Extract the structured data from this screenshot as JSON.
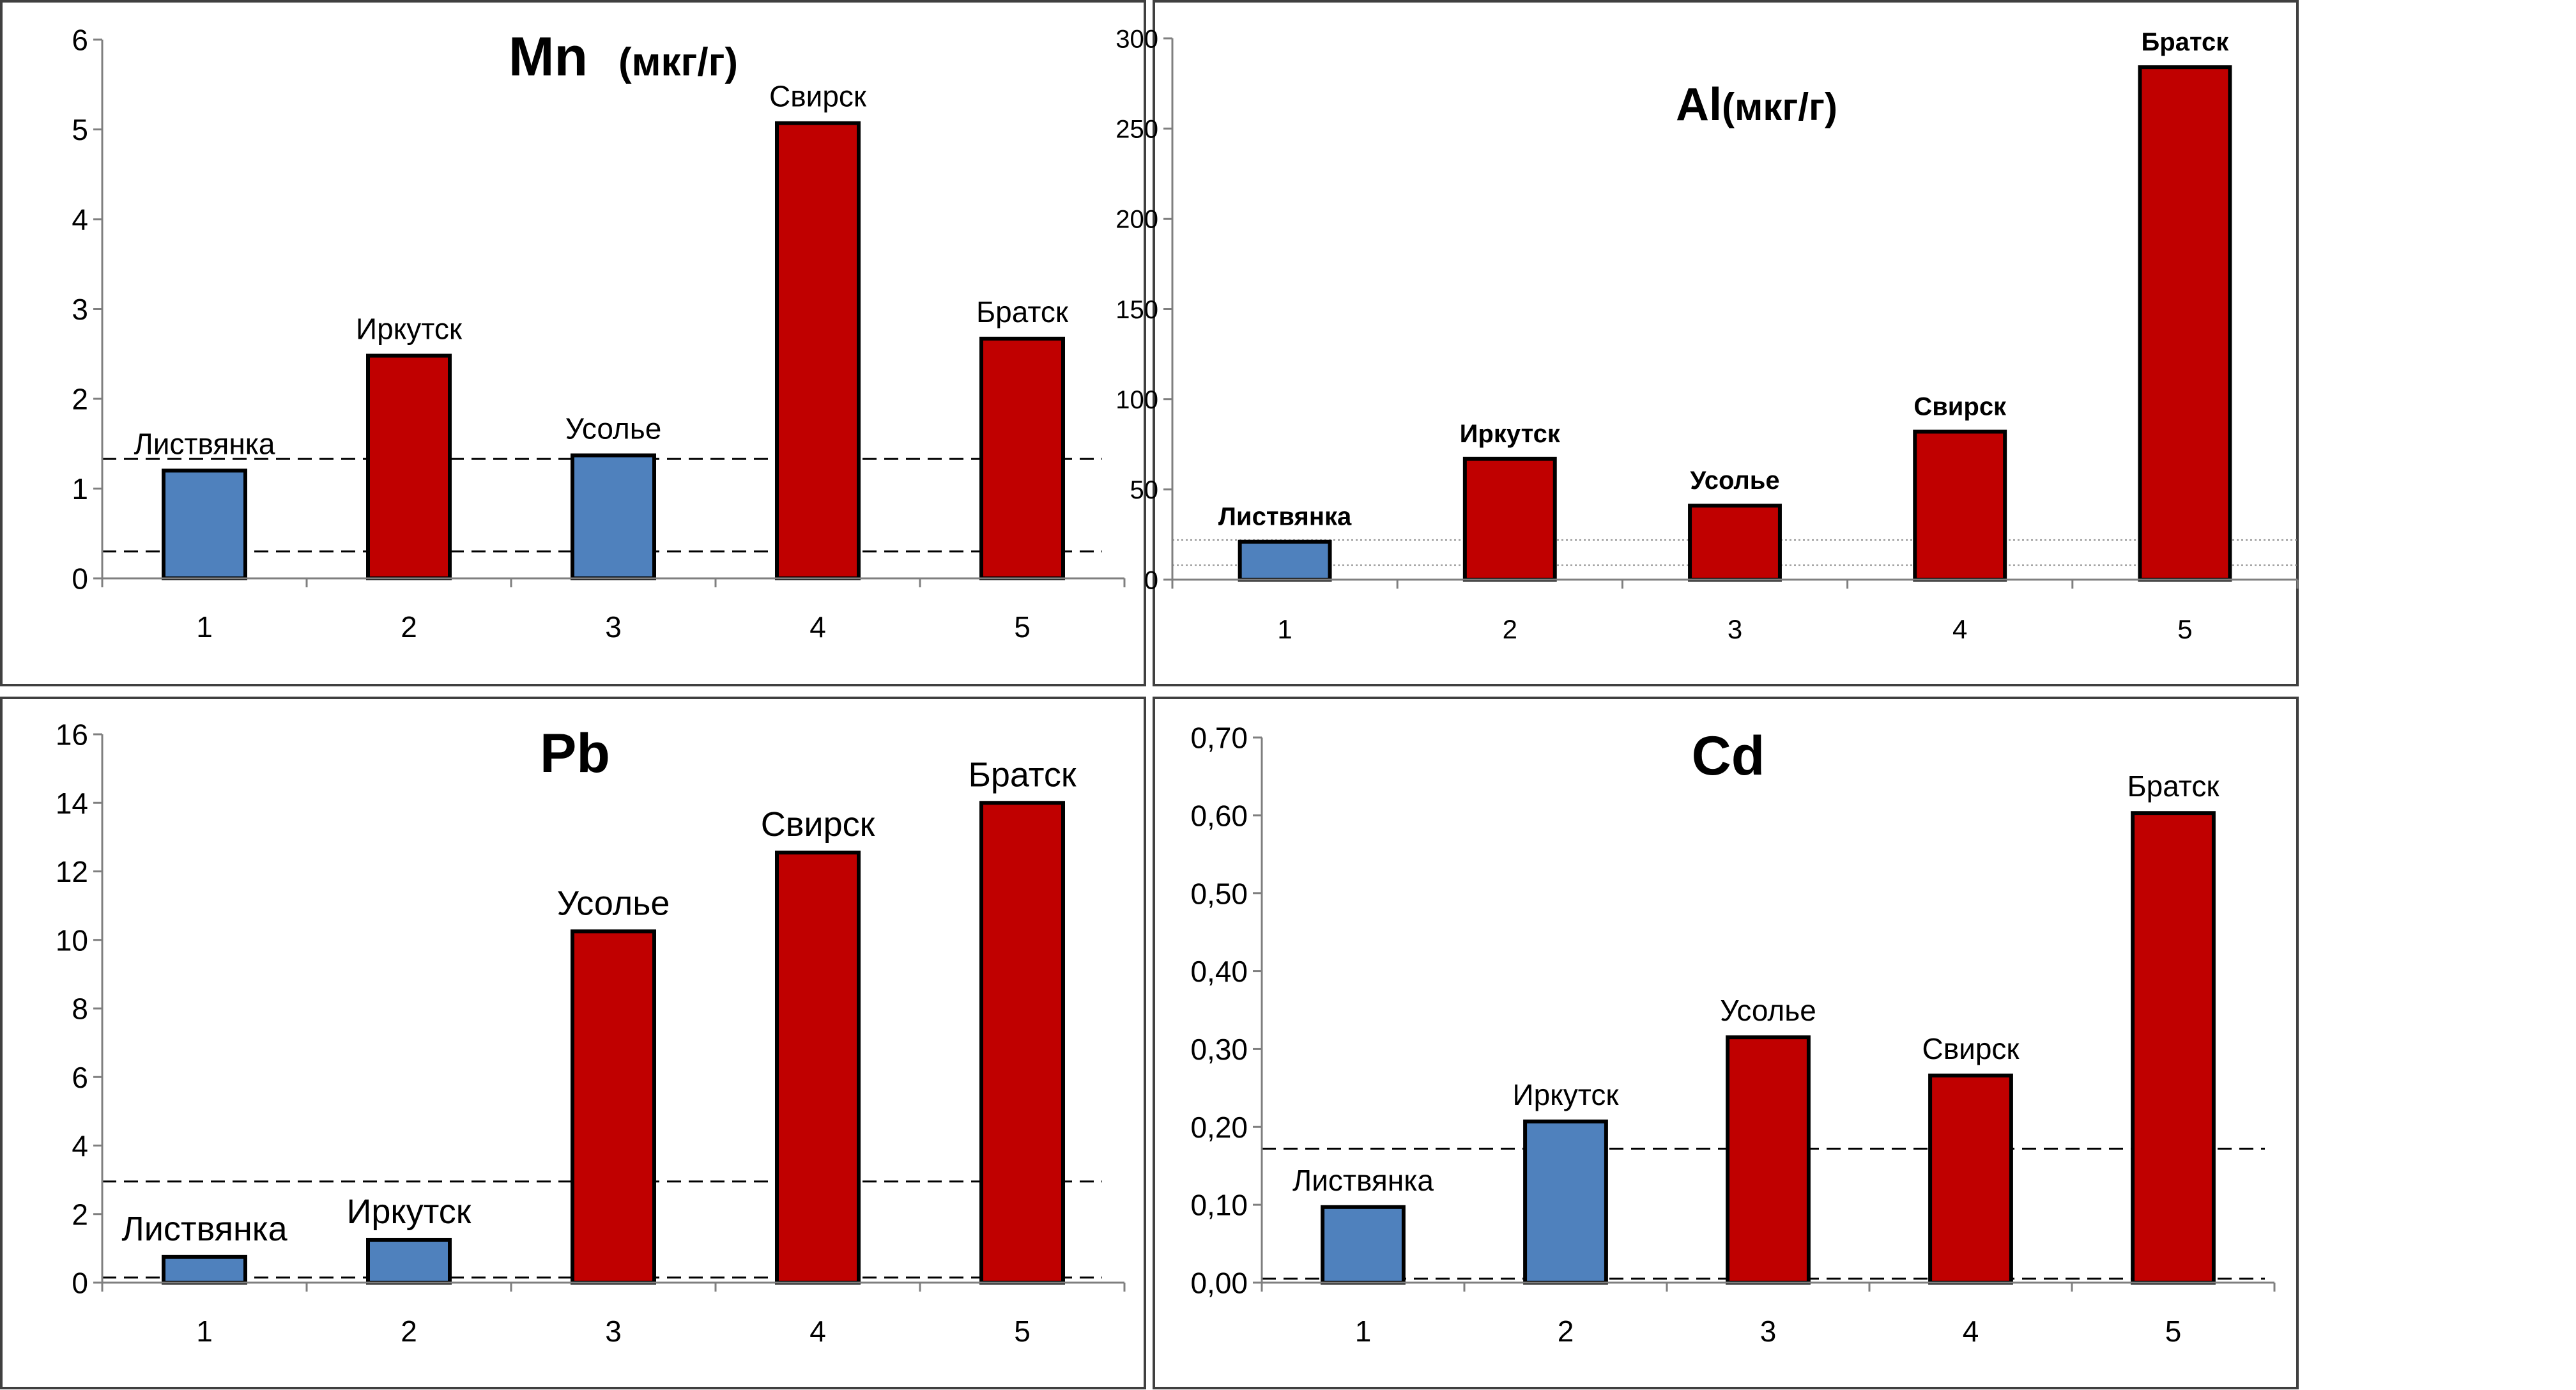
{
  "colors": {
    "blue": "#4f81bd",
    "red": "#c00000",
    "axis": "#7f7f7f",
    "frame": "#404040",
    "text": "#000000"
  },
  "chart_data": [
    {
      "type": "bar",
      "title": "Mn",
      "title_unit": "(мкг/г)",
      "categories": [
        "1",
        "2",
        "3",
        "4",
        "5"
      ],
      "values": [
        1.2,
        2.48,
        1.37,
        5.07,
        2.67
      ],
      "bar_labels": [
        "Листвянка",
        "Иркутск",
        "Усолье",
        "Свирск",
        "Братск"
      ],
      "bar_colors": [
        "blue",
        "red",
        "blue",
        "red",
        "red"
      ],
      "ylim": [
        0,
        6
      ],
      "yticks": [
        "0",
        "1",
        "2",
        "3",
        "4",
        "5",
        "6"
      ],
      "reference_lines": [
        1.33,
        0.3
      ],
      "reference_style": "dashed",
      "label_bold": false,
      "xlabel": "",
      "ylabel": ""
    },
    {
      "type": "bar",
      "title": "Al",
      "title_unit": "(мкг/г)",
      "categories": [
        "1",
        "2",
        "3",
        "4",
        "5"
      ],
      "values": [
        21,
        67,
        41,
        82,
        284
      ],
      "bar_labels": [
        "Листвянка",
        "Иркутск",
        "Усолье",
        "Свирск",
        "Братск"
      ],
      "bar_colors": [
        "blue",
        "red",
        "red",
        "red",
        "red"
      ],
      "ylim": [
        0,
        300
      ],
      "yticks": [
        "0",
        "50",
        "100",
        "150",
        "200",
        "250",
        "300"
      ],
      "reference_lines": [
        22,
        8
      ],
      "reference_style": "dotted",
      "label_bold": true,
      "xlabel": "",
      "ylabel": ""
    },
    {
      "type": "bar",
      "title": "Pb",
      "title_unit": "",
      "categories": [
        "1",
        "2",
        "3",
        "4",
        "5"
      ],
      "values": [
        0.75,
        1.25,
        10.25,
        12.55,
        14.0
      ],
      "bar_labels": [
        "Листвянка",
        "Иркутск",
        "Усолье",
        "Свирск",
        "Братск"
      ],
      "bar_colors": [
        "blue",
        "blue",
        "red",
        "red",
        "red"
      ],
      "ylim": [
        0,
        16
      ],
      "yticks": [
        "0",
        "2",
        "4",
        "6",
        "8",
        "10",
        "12",
        "14",
        "16"
      ],
      "reference_lines": [
        2.95,
        0.15
      ],
      "reference_style": "dashed",
      "label_bold": false,
      "xlabel": "",
      "ylabel": ""
    },
    {
      "type": "bar",
      "title": "Cd",
      "title_unit": "",
      "categories": [
        "1",
        "2",
        "3",
        "4",
        "5"
      ],
      "values": [
        0.097,
        0.207,
        0.315,
        0.266,
        0.603
      ],
      "bar_labels": [
        "Листвянка",
        "Иркутск",
        "Усолье",
        "Свирск",
        "Братск"
      ],
      "bar_colors": [
        "blue",
        "blue",
        "red",
        "red",
        "red"
      ],
      "ylim": [
        0,
        0.7
      ],
      "yticks": [
        "0,00",
        "0,10",
        "0,20",
        "0,30",
        "0,40",
        "0,50",
        "0,60",
        "0,70"
      ],
      "reference_lines": [
        0.172,
        0.005
      ],
      "reference_style": "dashed",
      "label_bold": false,
      "xlabel": "",
      "ylabel": ""
    }
  ]
}
